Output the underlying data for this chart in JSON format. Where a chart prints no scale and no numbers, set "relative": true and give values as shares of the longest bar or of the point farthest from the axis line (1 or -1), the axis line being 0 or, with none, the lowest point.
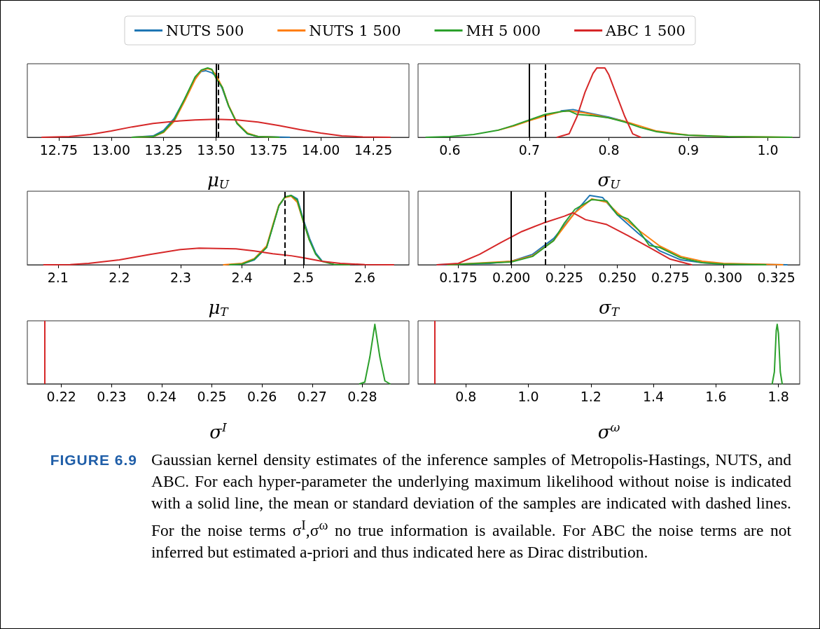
{
  "chart_data": [
    {
      "type": "line",
      "relative": true,
      "legend": "top",
      "xlabel": "μ$_{U}$",
      "xlim": [
        12.6,
        14.42
      ],
      "xticks": [
        12.75,
        {
          "value": 13,
          "label": "13.00"
        },
        13.25,
        {
          "value": 13.5,
          "label": "13.50"
        },
        13.75,
        {
          "value": 14,
          "label": "14.00"
        },
        14.25
      ],
      "series": [
        {
          "name": "NUTS 500",
          "color": "#1f77b4",
          "x": [
            13.1,
            13.2,
            13.25,
            13.3,
            13.35,
            13.4,
            13.43,
            13.45,
            13.48,
            13.5,
            13.53,
            13.56,
            13.6,
            13.65,
            13.7,
            13.85
          ],
          "values": [
            0,
            0.02,
            0.1,
            0.27,
            0.55,
            0.85,
            0.95,
            0.96,
            0.93,
            0.88,
            0.7,
            0.45,
            0.2,
            0.05,
            0.01,
            0
          ]
        },
        {
          "name": "NUTS 1 500",
          "color": "#ff7f0e",
          "x": [
            13.1,
            13.2,
            13.25,
            13.3,
            13.35,
            13.4,
            13.43,
            13.46,
            13.48,
            13.5,
            13.53,
            13.56,
            13.6,
            13.65,
            13.7,
            13.8
          ],
          "values": [
            0,
            0.01,
            0.07,
            0.23,
            0.52,
            0.83,
            0.96,
            0.99,
            0.97,
            0.9,
            0.72,
            0.46,
            0.21,
            0.06,
            0.01,
            0
          ]
        },
        {
          "name": "MH 5 000",
          "color": "#2ca02c",
          "x": [
            13.1,
            13.2,
            13.25,
            13.3,
            13.35,
            13.4,
            13.43,
            13.46,
            13.48,
            13.5,
            13.53,
            13.56,
            13.6,
            13.65,
            13.7,
            13.8
          ],
          "values": [
            0,
            0.01,
            0.08,
            0.25,
            0.55,
            0.87,
            0.97,
            1,
            0.98,
            0.85,
            0.72,
            0.45,
            0.2,
            0.05,
            0.01,
            0
          ]
        },
        {
          "name": "ABC 1 500",
          "color": "#d62728",
          "x": [
            12.67,
            12.8,
            12.9,
            13,
            13.1,
            13.2,
            13.3,
            13.4,
            13.5,
            13.6,
            13.7,
            13.8,
            13.9,
            14,
            14.1,
            14.2,
            14.33
          ],
          "values": [
            0,
            0.01,
            0.04,
            0.09,
            0.15,
            0.2,
            0.23,
            0.25,
            0.26,
            0.25,
            0.22,
            0.17,
            0.11,
            0.06,
            0.02,
            0.005,
            0
          ]
        }
      ],
      "ref_lines": [
        {
          "axis": "x",
          "value": 13.5,
          "color": "#000000",
          "line_style": "solid"
        },
        {
          "axis": "x",
          "value": 13.51,
          "color": "#000000",
          "line_style": "dashed"
        }
      ]
    },
    {
      "type": "line",
      "relative": true,
      "xlabel": "σ$_{U}$",
      "xlim": [
        0.56,
        1.04
      ],
      "xticks": [
        0.6,
        0.7,
        0.8,
        0.9,
        {
          "value": 1,
          "label": "1.0"
        }
      ],
      "series": [
        {
          "color": "#1f77b4",
          "x": [
            0.74,
            0.755,
            0.77,
            0.8,
            0.82
          ],
          "values": [
            0.38,
            0.4,
            0.36,
            0.29,
            0.23
          ]
        },
        {
          "color": "#ff7f0e",
          "x": [
            0.66,
            0.68,
            0.7,
            0.72,
            0.74,
            0.75,
            0.77,
            0.8,
            0.82,
            0.84,
            0.86,
            0.88,
            0.9,
            0.95,
            1.03
          ],
          "values": [
            0.1,
            0.16,
            0.24,
            0.31,
            0.37,
            0.38,
            0.35,
            0.28,
            0.23,
            0.16,
            0.09,
            0.06,
            0.03,
            0.01,
            0
          ]
        },
        {
          "color": "#2ca02c",
          "x": [
            0.57,
            0.6,
            0.63,
            0.66,
            0.68,
            0.7,
            0.72,
            0.74,
            0.75,
            0.76,
            0.78,
            0.8,
            0.82,
            0.84,
            0.86,
            0.88,
            0.9,
            0.95,
            1.03
          ],
          "values": [
            0,
            0.01,
            0.04,
            0.1,
            0.17,
            0.25,
            0.33,
            0.37,
            0.38,
            0.33,
            0.31,
            0.28,
            0.22,
            0.14,
            0.08,
            0.05,
            0.03,
            0.01,
            0
          ]
        },
        {
          "color": "#d62728",
          "x": [
            0.735,
            0.75,
            0.76,
            0.77,
            0.78,
            0.785,
            0.795,
            0.8,
            0.81,
            0.82,
            0.83,
            0.84
          ],
          "values": [
            0,
            0.05,
            0.3,
            0.65,
            0.92,
            1,
            1,
            0.9,
            0.6,
            0.3,
            0.05,
            0
          ]
        }
      ],
      "ref_lines": [
        {
          "axis": "x",
          "value": 0.7,
          "color": "#000000",
          "line_style": "solid"
        },
        {
          "axis": "x",
          "value": 0.72,
          "color": "#000000",
          "line_style": "dashed"
        }
      ]
    },
    {
      "type": "line",
      "relative": true,
      "xlabel": "μ$_{T}$",
      "xlim": [
        2.05,
        2.672
      ],
      "xticks": [
        2.1,
        2.2,
        2.3,
        2.4,
        2.5,
        2.6
      ],
      "series": [
        {
          "color": "#1f77b4",
          "x": [
            2.38,
            2.4,
            2.42,
            2.44,
            2.45,
            2.46,
            2.47,
            2.48,
            2.49,
            2.5,
            2.51,
            2.52,
            2.53
          ],
          "values": [
            0,
            0.01,
            0.07,
            0.25,
            0.55,
            0.85,
            0.97,
            1,
            0.95,
            0.65,
            0.38,
            0.17,
            0.06
          ]
        },
        {
          "color": "#ff7f0e",
          "x": [
            2.37,
            2.4,
            2.42,
            2.44,
            2.45,
            2.46,
            2.47,
            2.48,
            2.49,
            2.5,
            2.51
          ],
          "values": [
            0,
            0.02,
            0.09,
            0.27,
            0.57,
            0.86,
            0.97,
            0.99,
            0.9,
            0.62,
            0.35
          ]
        },
        {
          "color": "#2ca02c",
          "x": [
            2.38,
            2.4,
            2.42,
            2.44,
            2.45,
            2.46,
            2.47,
            2.48,
            2.49,
            2.5,
            2.51,
            2.52,
            2.53,
            2.55,
            2.575
          ],
          "values": [
            0,
            0.01,
            0.08,
            0.25,
            0.55,
            0.85,
            0.98,
            1,
            0.93,
            0.62,
            0.35,
            0.15,
            0.05,
            0.005,
            0
          ]
        },
        {
          "color": "#d62728",
          "x": [
            2.077,
            2.12,
            2.15,
            2.2,
            2.25,
            2.3,
            2.33,
            2.36,
            2.39,
            2.42,
            2.45,
            2.48,
            2.5,
            2.53,
            2.56,
            2.6,
            2.647
          ],
          "values": [
            0,
            0.003,
            0.02,
            0.07,
            0.15,
            0.22,
            0.24,
            0.235,
            0.23,
            0.2,
            0.16,
            0.13,
            0.1,
            0.05,
            0.02,
            0.003,
            0
          ]
        }
      ],
      "ref_lines": [
        {
          "axis": "x",
          "value": 2.5,
          "color": "#000000",
          "line_style": "solid"
        },
        {
          "axis": "x",
          "value": 2.47,
          "color": "#000000",
          "line_style": "dashed"
        }
      ]
    },
    {
      "type": "line",
      "relative": true,
      "xlabel": "σ$_{T}$",
      "xlim": [
        0.156,
        0.336
      ],
      "xticks": [
        0.175,
        {
          "value": 0.2,
          "label": "0.200"
        },
        0.225,
        {
          "value": 0.25,
          "label": "0.250"
        },
        0.275,
        {
          "value": 0.3,
          "label": "0.300"
        },
        0.325
      ],
      "series": [
        {
          "color": "#1f77b4",
          "x": [
            0.165,
            0.19,
            0.2,
            0.21,
            0.22,
            0.23,
            0.237,
            0.243,
            0.25,
            0.26,
            0.27,
            0.28,
            0.29,
            0.3,
            0.315,
            0.33
          ],
          "values": [
            0,
            0.02,
            0.05,
            0.15,
            0.38,
            0.75,
            1,
            0.97,
            0.72,
            0.45,
            0.2,
            0.07,
            0.03,
            0.01,
            0.005,
            0
          ]
        },
        {
          "color": "#ff7f0e",
          "x": [
            0.17,
            0.2,
            0.21,
            0.22,
            0.23,
            0.238,
            0.245,
            0.25,
            0.26,
            0.27,
            0.28,
            0.29,
            0.3,
            0.328
          ],
          "values": [
            0,
            0.05,
            0.13,
            0.35,
            0.75,
            0.95,
            0.9,
            0.75,
            0.5,
            0.27,
            0.12,
            0.05,
            0.02,
            0
          ]
        },
        {
          "color": "#2ca02c",
          "x": [
            0.17,
            0.2,
            0.21,
            0.22,
            0.225,
            0.23,
            0.238,
            0.245,
            0.25,
            0.255,
            0.26,
            0.265,
            0.27,
            0.28,
            0.29,
            0.3,
            0.32
          ],
          "values": [
            0,
            0.04,
            0.12,
            0.35,
            0.6,
            0.8,
            0.94,
            0.92,
            0.72,
            0.66,
            0.5,
            0.28,
            0.25,
            0.1,
            0.03,
            0.01,
            0
          ]
        },
        {
          "color": "#d62728",
          "x": [
            0.165,
            0.175,
            0.185,
            0.195,
            0.205,
            0.215,
            0.225,
            0.229,
            0.235,
            0.245,
            0.255,
            0.265,
            0.275,
            0.285
          ],
          "values": [
            0,
            0.02,
            0.15,
            0.32,
            0.48,
            0.6,
            0.7,
            0.75,
            0.65,
            0.58,
            0.42,
            0.25,
            0.08,
            0
          ]
        }
      ],
      "ref_lines": [
        {
          "axis": "x",
          "value": 0.2,
          "color": "#000000",
          "line_style": "solid"
        },
        {
          "axis": "x",
          "value": 0.216,
          "color": "#000000",
          "line_style": "dashed"
        }
      ]
    },
    {
      "type": "line",
      "relative": true,
      "xlabel": "σ$^{I}$",
      "xlim": [
        0.2132,
        0.2893
      ],
      "xticks": [
        0.22,
        0.23,
        0.24,
        0.25,
        0.26,
        0.27,
        0.28
      ],
      "series": [
        {
          "color": "#2ca02c",
          "x": [
            0.2795,
            0.2805,
            0.2815,
            0.2825,
            0.2835,
            0.2845,
            0.2855
          ],
          "values": [
            0,
            0.03,
            0.45,
            1,
            0.45,
            0.05,
            0
          ]
        }
      ],
      "ref_lines": [
        {
          "axis": "x",
          "value": 0.2166,
          "color": "#d62728",
          "line_style": "solid"
        }
      ]
    },
    {
      "type": "line",
      "relative": true,
      "xlabel": "σ$^{ω}$",
      "xlim": [
        0.647,
        1.868
      ],
      "xticks": [
        0.8,
        {
          "value": 1,
          "label": "1.0"
        },
        1.2,
        1.4,
        1.6,
        1.8
      ],
      "series": [
        {
          "color": "#2ca02c",
          "x": [
            1.78,
            1.787,
            1.793,
            1.796,
            1.8,
            1.806,
            1.812
          ],
          "values": [
            0,
            0.2,
            0.9,
            1,
            0.85,
            0.2,
            0
          ]
        }
      ],
      "ref_lines": [
        {
          "axis": "x",
          "value": 0.7,
          "color": "#d62728",
          "line_style": "solid"
        }
      ],
      "annotations": [
        "FIGURE 6.9",
        "Gaussian kernel density estimates of the inference samples of Metropolis-Hastings, NUTS, and ABC. For each hyper-parameter the underlying maximum likelihood without noise is indicated with a solid line, the mean or standard deviation of the samples are indicated with dashed lines. For the noise terms σ$^{I}$,σ$^{ω}$ no true information is available. For ABC the noise terms are not inferred but estimated a-priori and thus indicated here as Dirac distribution."
      ]
    }
  ]
}
